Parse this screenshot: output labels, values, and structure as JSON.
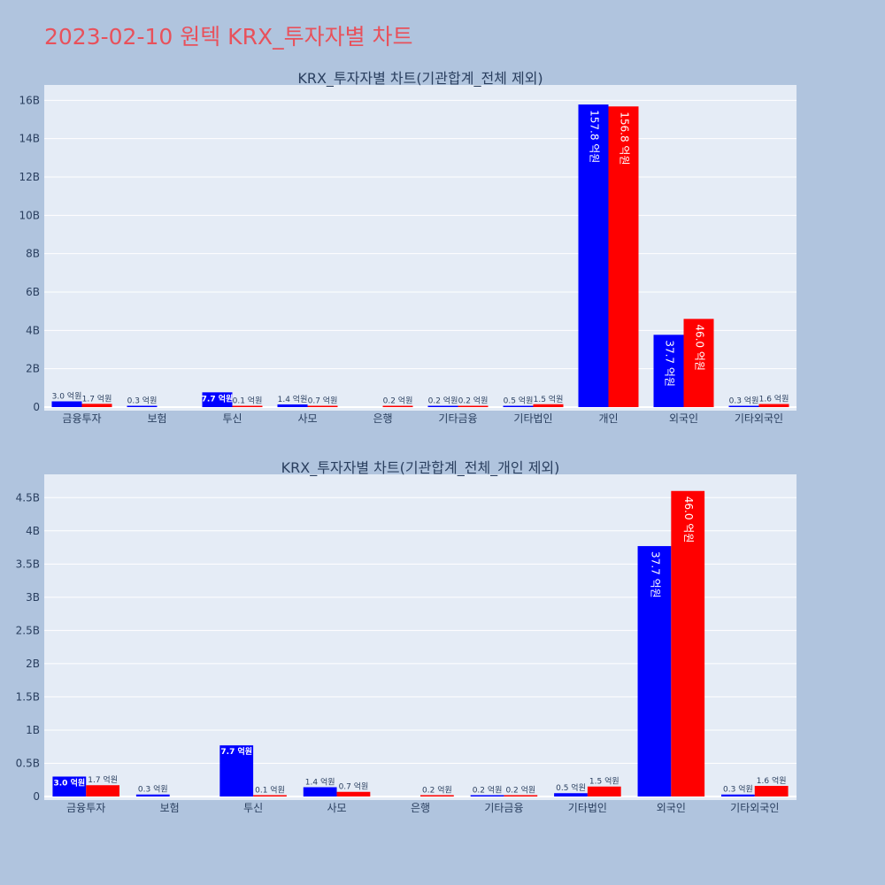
{
  "page_title": "2023-02-10 원텍 KRX_투자자별 차트",
  "colors": {
    "series_a": "#0000ff",
    "series_b": "#ff0000",
    "plot_bg": "#e5ecf6",
    "page_bg": "#b0c4de",
    "title": "#e8515b"
  },
  "chart_data": [
    {
      "type": "bar",
      "title": "KRX_투자자별 차트(기관합계_전체 제외)",
      "categories": [
        "금융투자",
        "보험",
        "투신",
        "사모",
        "은행",
        "기타금융",
        "기타법인",
        "개인",
        "외국인",
        "기타외국인"
      ],
      "series": [
        {
          "values": [
            0.3,
            0.03,
            0.77,
            0.14,
            0,
            0.02,
            0.05,
            15.78,
            3.77,
            0.03
          ],
          "labels": [
            "3.0 억원",
            "0.3 억원",
            "7.7 억원",
            "1.4 억원",
            "",
            "0.2 억원",
            "0.5 억원",
            "157.8 억원",
            "37.7 억원",
            "0.3 억원"
          ]
        },
        {
          "values": [
            0.17,
            0,
            0.01,
            0.07,
            0.02,
            0.02,
            0.15,
            15.68,
            4.6,
            0.16
          ],
          "labels": [
            "1.7 억원",
            "",
            "0.1 억원",
            "0.7 억원",
            "0.2 억원",
            "0.2 억원",
            "1.5 억원",
            "156.8 억원",
            "46.0 억원",
            "1.6 억원"
          ]
        }
      ],
      "y_ticks": [
        0,
        2,
        4,
        6,
        8,
        10,
        12,
        14,
        16
      ],
      "y_tick_labels": [
        "0",
        "2B",
        "4B",
        "6B",
        "8B",
        "10B",
        "12B",
        "14B",
        "16B"
      ],
      "ylim": [
        0,
        16.8
      ],
      "grid": true
    },
    {
      "type": "bar",
      "title": "KRX_투자자별 차트(기관합계_전체_개인 제외)",
      "categories": [
        "금융투자",
        "보험",
        "투신",
        "사모",
        "은행",
        "기타금융",
        "기타법인",
        "외국인",
        "기타외국인"
      ],
      "series": [
        {
          "values": [
            0.3,
            0.03,
            0.77,
            0.14,
            0,
            0.02,
            0.05,
            3.77,
            0.03
          ],
          "labels": [
            "3.0 억원",
            "0.3 억원",
            "7.7 억원",
            "1.4 억원",
            "",
            "0.2 억원",
            "0.5 억원",
            "37.7 억원",
            "0.3 억원"
          ]
        },
        {
          "values": [
            0.17,
            0,
            0.01,
            0.07,
            0.02,
            0.02,
            0.15,
            4.6,
            0.16
          ],
          "labels": [
            "1.7 억원",
            "",
            "0.1 억원",
            "0.7 억원",
            "0.2 억원",
            "0.2 억원",
            "1.5 억원",
            "46.0 억원",
            "1.6 억원"
          ]
        }
      ],
      "y_ticks": [
        0,
        0.5,
        1,
        1.5,
        2,
        2.5,
        3,
        3.5,
        4,
        4.5
      ],
      "y_tick_labels": [
        "0",
        "0.5B",
        "1B",
        "1.5B",
        "2B",
        "2.5B",
        "3B",
        "3.5B",
        "4B",
        "4.5B"
      ],
      "ylim": [
        0,
        4.85
      ],
      "grid": true
    }
  ]
}
